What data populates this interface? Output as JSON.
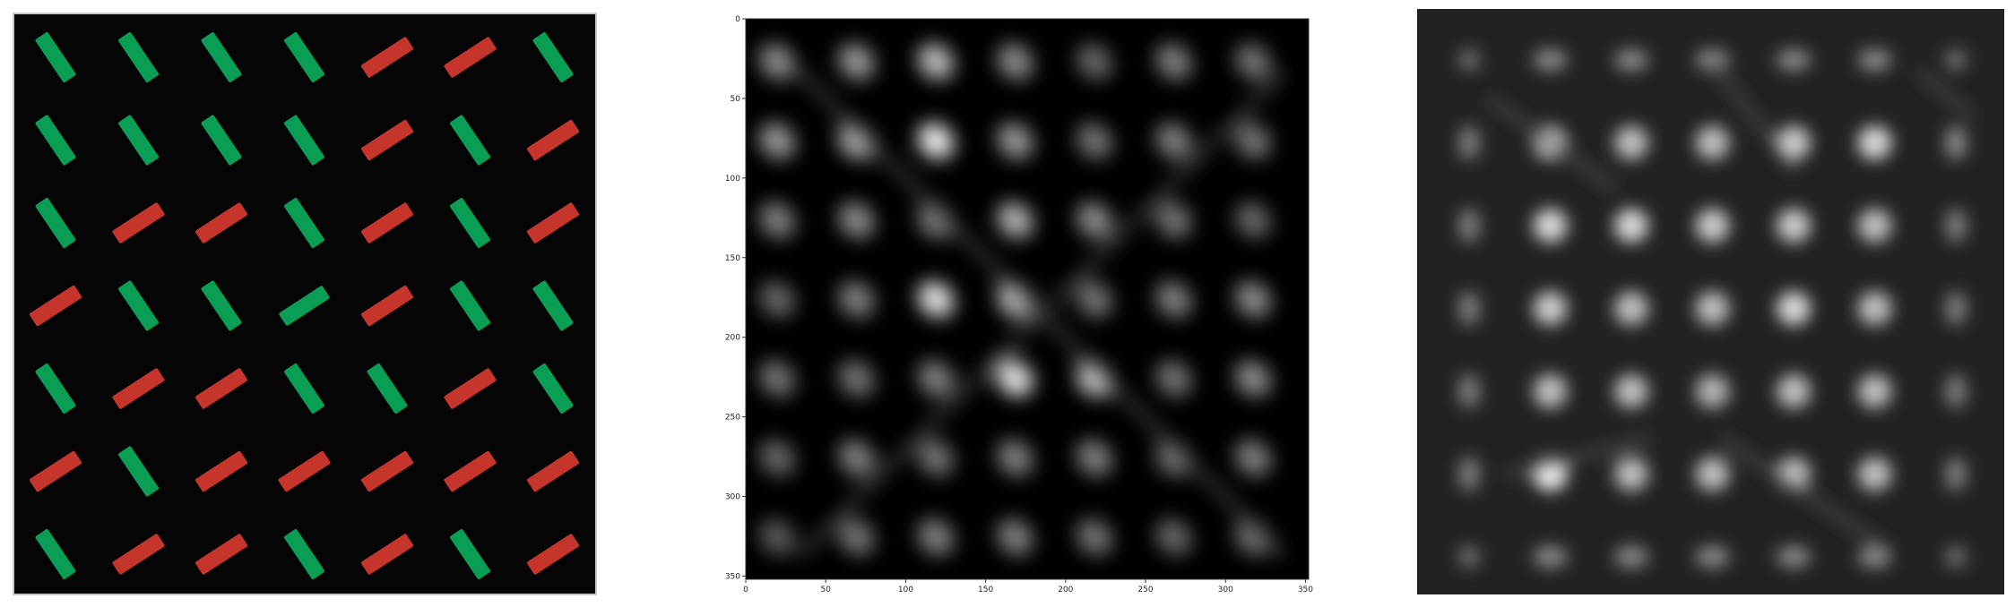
{
  "colors": {
    "background": "#ffffff",
    "stimulus_background": "#050505",
    "green_bar": "#0a9e55",
    "red_bar": "#c5352c",
    "blur_background": "#222222"
  },
  "stimulus": {
    "rows": [
      [
        "G-",
        "G-",
        "G-",
        "G-",
        "R+",
        "R+",
        "G-"
      ],
      [
        "G-",
        "G-",
        "G-",
        "G-",
        "R+",
        "G-",
        "R+"
      ],
      [
        "G-",
        "R+",
        "R+",
        "G-",
        "R+",
        "G-",
        "R+"
      ],
      [
        "R+",
        "G-",
        "G-",
        "G+",
        "R+",
        "G-",
        "G-"
      ],
      [
        "G-",
        "R+",
        "R+",
        "G-",
        "G-",
        "R+",
        "G-"
      ],
      [
        "R+",
        "G-",
        "R+",
        "R+",
        "R+",
        "R+",
        "R+"
      ],
      [
        "G-",
        "R+",
        "R+",
        "G-",
        "R+",
        "G-",
        "R+"
      ]
    ]
  },
  "plot": {
    "x_ticks": [
      "0",
      "50",
      "100",
      "150",
      "200",
      "250",
      "300",
      "350"
    ],
    "y_ticks": [
      "0",
      "50",
      "100",
      "150",
      "200",
      "250",
      "300",
      "350"
    ]
  }
}
